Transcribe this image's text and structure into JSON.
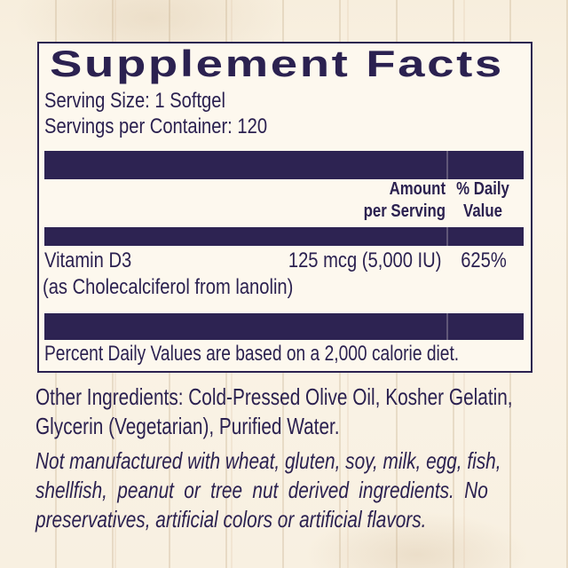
{
  "label": {
    "title": "Supplement Facts",
    "serving_size": "Serving Size: 1 Softgel",
    "servings_per_container": "Servings per Container: 120",
    "columns": {
      "amount_line1": "Amount",
      "amount_line2": "per Serving",
      "daily_value_line1": "% Daily",
      "daily_value_line2": "Value"
    },
    "rows": [
      {
        "name": "Vitamin D3",
        "detail": "(as Cholecalciferol from lanolin)",
        "amount": "125 mcg (5,000 IU)",
        "daily_value": "625%"
      }
    ],
    "footnote": "Percent Daily Values are based on a 2,000 calorie diet."
  },
  "other_ingredients": {
    "lines": [
      "Other Ingredients: Cold-Pressed Olive Oil, Kosher Gelatin,",
      "Glycerin (Vegetarian), Purified Water."
    ]
  },
  "allergen_statement": {
    "lines": [
      "Not manufactured with wheat, gluten, soy, milk, egg, fish,",
      "shellfish, peanut or tree nut derived ingredients. No",
      "preservatives, artificial colors or artificial flavors."
    ]
  },
  "colors": {
    "navy": "#2b2150",
    "bar_navy": "#2d2352",
    "background_cream": "#f9f2e3",
    "box_background": "#fdf8ee"
  }
}
